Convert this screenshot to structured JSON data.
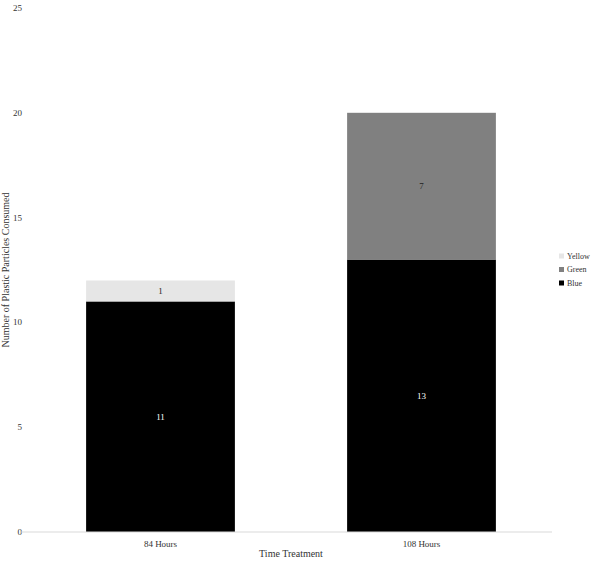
{
  "chart_data": {
    "type": "bar",
    "stacked": true,
    "x_label": "Time Treatment",
    "y_label": "Number of Plastic Particles Consumed",
    "categories": [
      "84 Hours",
      "108 Hours"
    ],
    "series": [
      {
        "name": "Blue",
        "color": "#000000",
        "values": [
          11,
          13
        ]
      },
      {
        "name": "Green",
        "color": "#808080",
        "values": [
          null,
          7
        ]
      },
      {
        "name": "Yellow",
        "color": "#e6e6e6",
        "values": [
          1,
          null
        ]
      }
    ],
    "ylim": [
      0,
      25
    ],
    "yticks": [
      0,
      5,
      10,
      15,
      20,
      25
    ],
    "grid": false,
    "legend": "right",
    "data_labels": true
  }
}
